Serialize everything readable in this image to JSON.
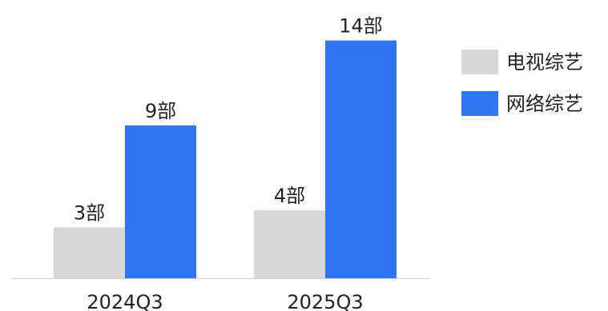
{
  "chart_data": {
    "type": "bar",
    "categories": [
      "2024Q3",
      "2025Q3"
    ],
    "series": [
      {
        "name": "电视综艺",
        "values": [
          3,
          4
        ],
        "labels": [
          "3部",
          "4部"
        ],
        "color": "#d6d7d9"
      },
      {
        "name": "网络综艺",
        "values": [
          9,
          14
        ],
        "labels": [
          "9部",
          "14部"
        ],
        "color": "#2f75f5"
      }
    ],
    "ylim": [
      0,
      14.5
    ],
    "axis_color": "#d0d0d0",
    "legend_position": "top-right",
    "grid": false
  }
}
